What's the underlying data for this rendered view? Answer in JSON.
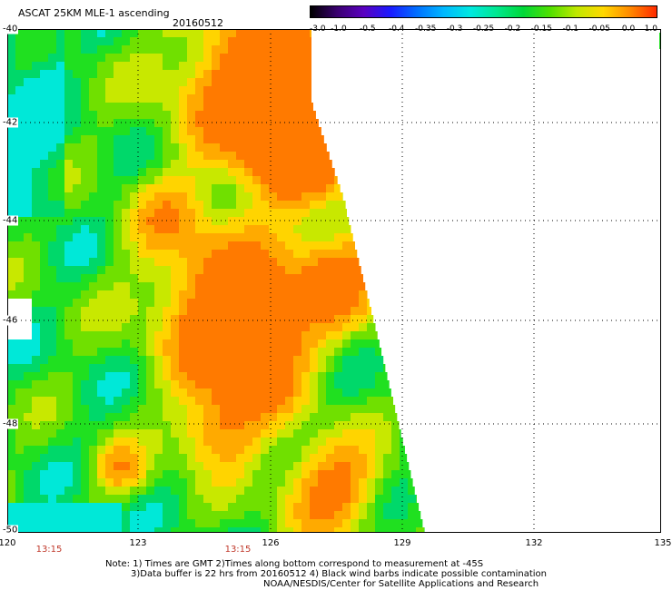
{
  "header": {
    "title": "ASCAT 25KM MLE-1 ascending",
    "date": "20160512"
  },
  "colorbar": {
    "labels": [
      "-3.0",
      "-1.0",
      "-0.5",
      "-0.4",
      "-0.35",
      "-0.3",
      "-0.25",
      "-0.2",
      "-0.15",
      "-0.1",
      "-0.05",
      "0.0",
      "1.0"
    ],
    "colors": [
      "#000000",
      "#3a0070",
      "#5a00c0",
      "#1a1aff",
      "#0070ff",
      "#00b8ff",
      "#00e8e0",
      "#00e890",
      "#00d838",
      "#50e000",
      "#c0e800",
      "#ffd800",
      "#ff8a00",
      "#ff2a00"
    ]
  },
  "axes": {
    "lat_labels": [
      "-40",
      "-42",
      "-44",
      "-46",
      "-48",
      "-50"
    ],
    "lon_labels": [
      "120",
      "123",
      "126",
      "129",
      "132",
      "135"
    ]
  },
  "time_labels": [
    "13:15",
    "13:15"
  ],
  "notes": {
    "line1": "Note: 1) Times are GMT 2)Times along bottom correspond to measurement at -45S",
    "line2": "3)Data buffer is 22 hrs from 20160512 4) Black wind barbs indicate possible contamination",
    "line3": "NOAA/NESDIS/Center for Satellite Applications and Research"
  }
}
